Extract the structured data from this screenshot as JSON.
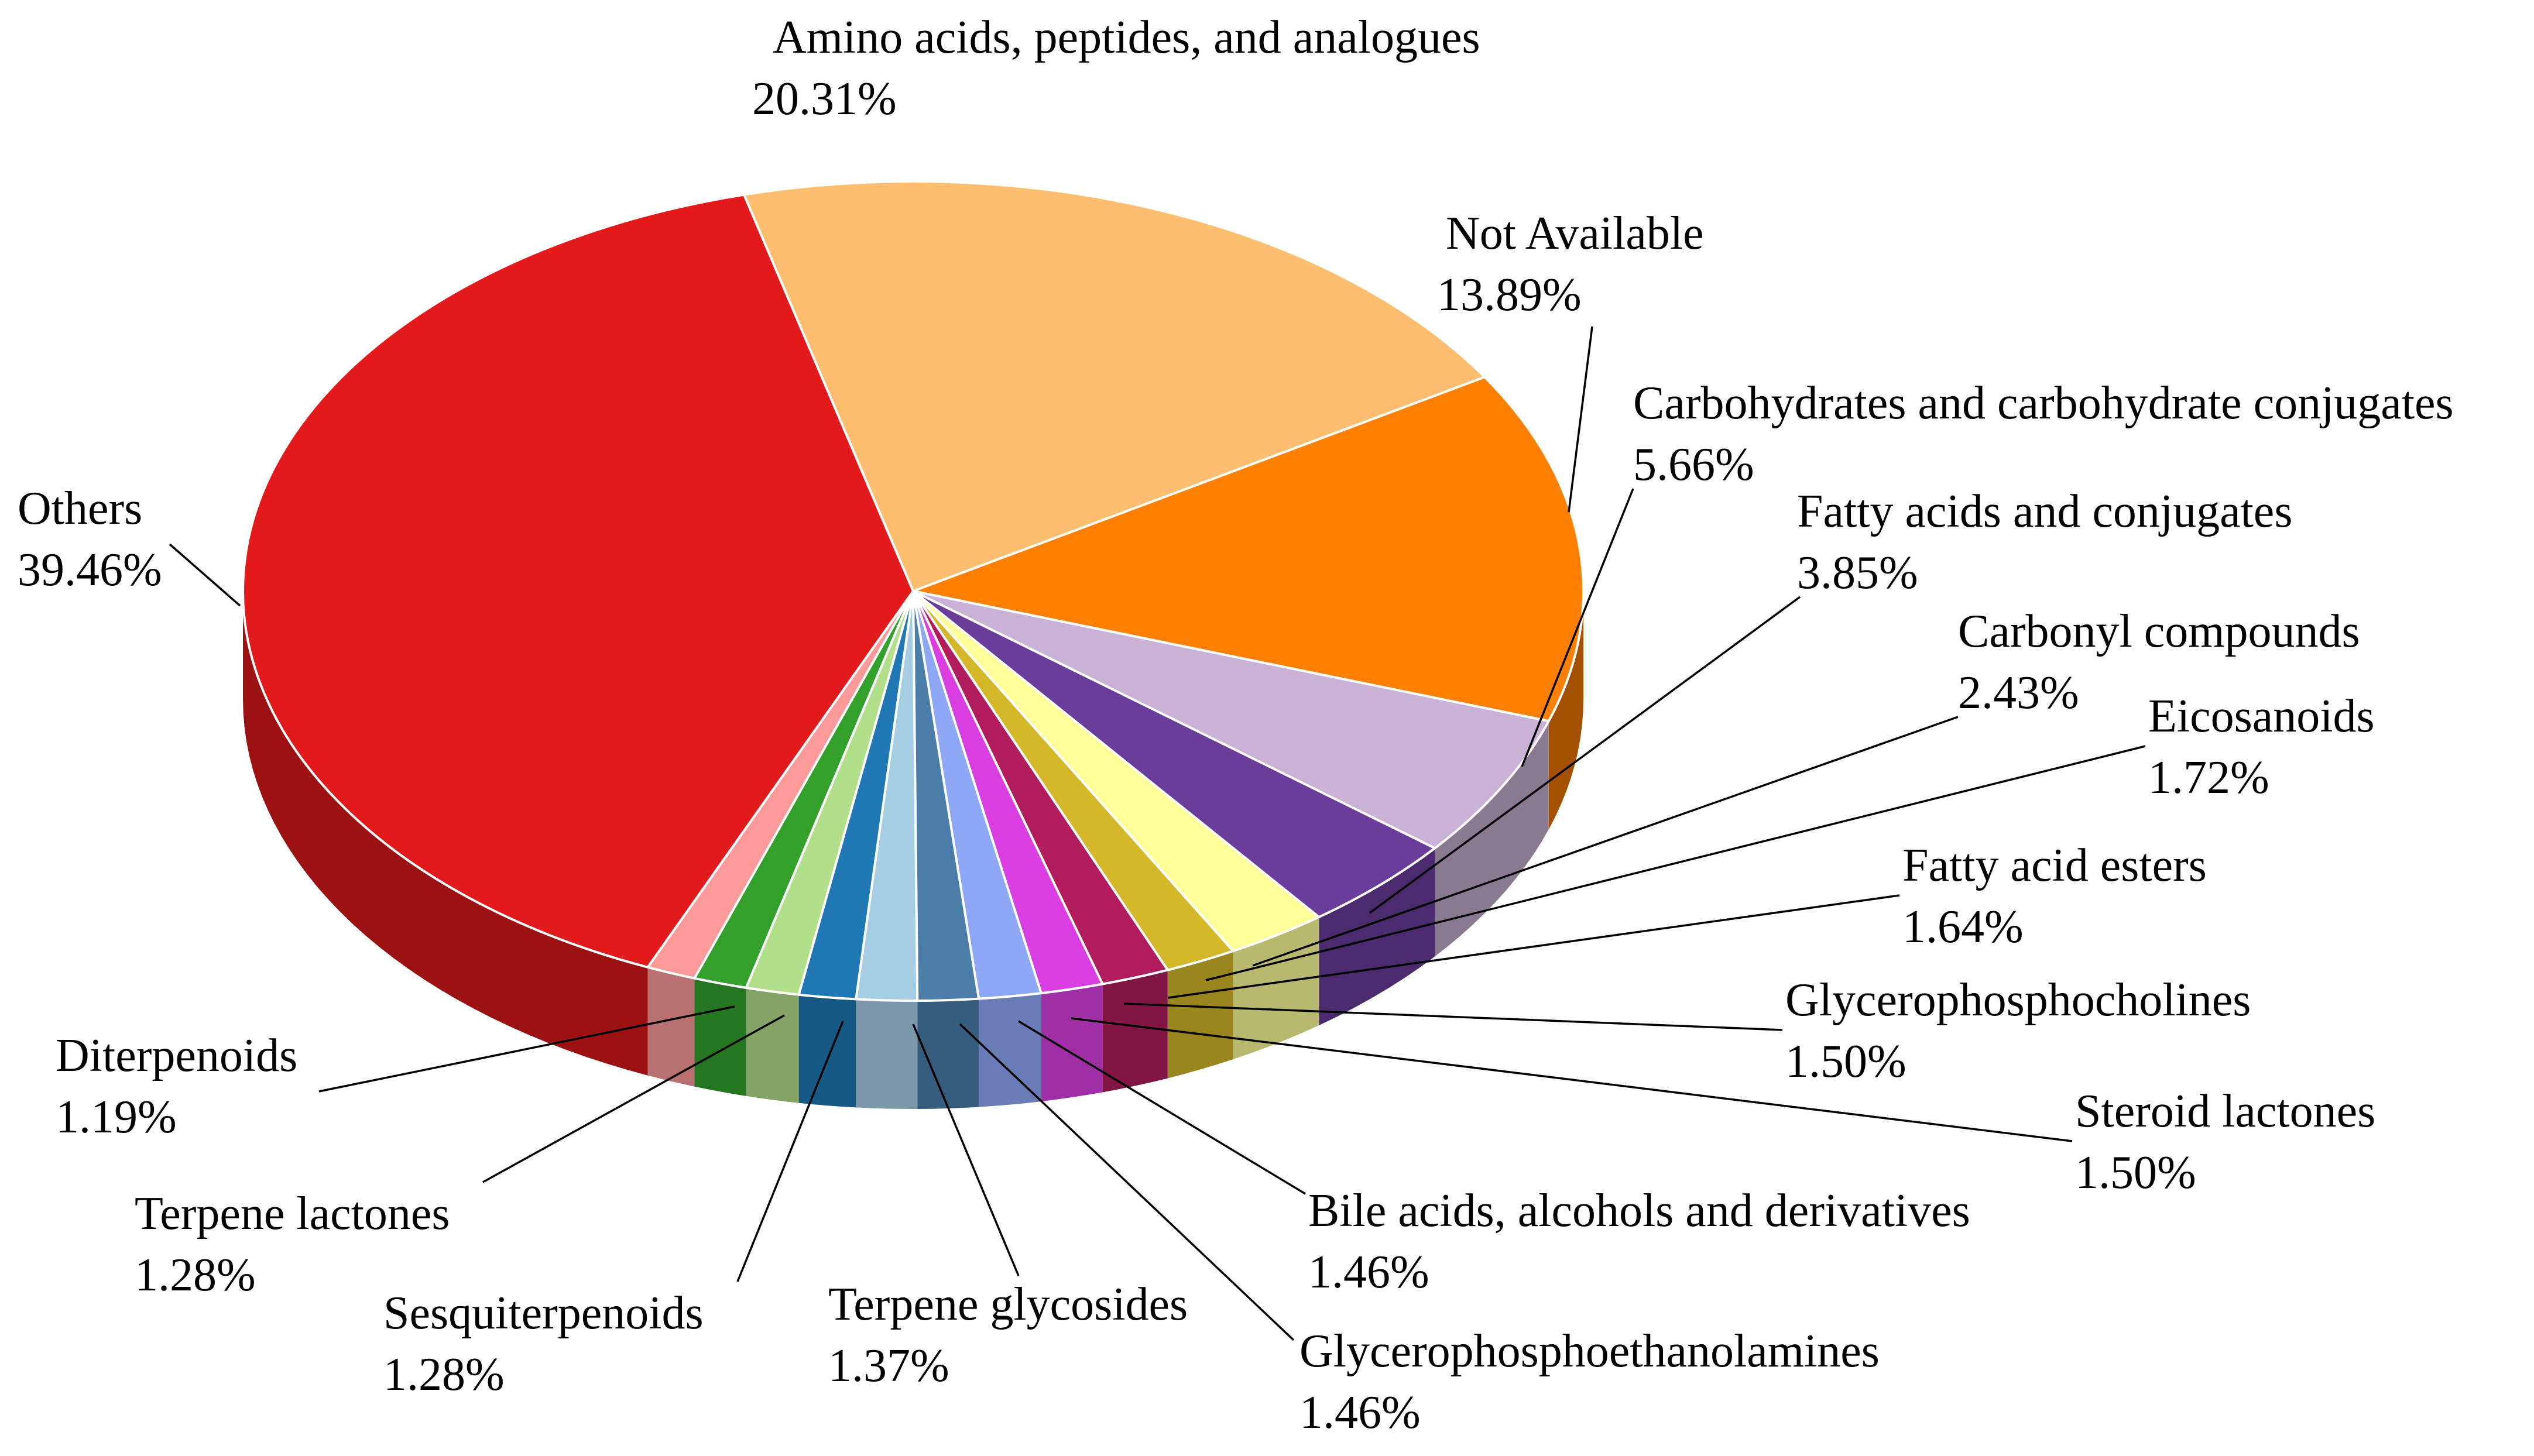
{
  "chart_data": {
    "type": "pie",
    "title": "",
    "slices": [
      {
        "label": "Not Available",
        "value": 13.89,
        "display": "13.89%",
        "color": "#ff7f00"
      },
      {
        "label": "Carbohydrates and carbohydrate conjugates",
        "value": 5.66,
        "display": "5.66%",
        "color": "#cab2d6"
      },
      {
        "label": "Fatty acids and conjugates",
        "value": 3.85,
        "display": "3.85%",
        "color": "#6a3d9a"
      },
      {
        "label": "Carbonyl compounds",
        "value": 2.43,
        "display": "2.43%",
        "color": "#ffff99"
      },
      {
        "label": "Eicosanoids",
        "value": 1.72,
        "display": "1.72%",
        "color": "#d4b82a"
      },
      {
        "label": "Fatty acid esters",
        "value": 1.64,
        "display": "1.64%",
        "color": "#b01c5c"
      },
      {
        "label": "Glycerophosphocholines",
        "value": 1.5,
        "display": "1.50%",
        "color": "#d93ee0"
      },
      {
        "label": "Steroid lactones",
        "value": 1.5,
        "display": "1.50%",
        "color": "#8ea8f5"
      },
      {
        "label": "Bile acids, alcohols and derivatives",
        "value": 1.46,
        "display": "1.46%",
        "color": "#4a7ea8"
      },
      {
        "label": "Glycerophosphoethanolamines",
        "value": 1.46,
        "display": "1.46%",
        "color": "#a6cee3"
      },
      {
        "label": "Terpene glycosides",
        "value": 1.37,
        "display": "1.37%",
        "color": "#1f78b4"
      },
      {
        "label": "Sesquiterpenoids",
        "value": 1.28,
        "display": "1.28%",
        "color": "#b2df8a"
      },
      {
        "label": "Terpene lactones",
        "value": 1.28,
        "display": "1.28%",
        "color": "#33a02c"
      },
      {
        "label": "Diterpenoids",
        "value": 1.19,
        "display": "1.19%",
        "color": "#fb9a99"
      },
      {
        "label": "Others",
        "value": 39.46,
        "display": "39.46%",
        "color": "#e31a1c"
      },
      {
        "label": "Amino acids, peptides, and analogues",
        "value": 20.31,
        "display": "20.31%",
        "color": "#fdbf6f"
      }
    ],
    "start_angle_deg": -31.5,
    "direction": "clockwise",
    "legend": "none",
    "style": "3d-exploded-free-labels"
  }
}
